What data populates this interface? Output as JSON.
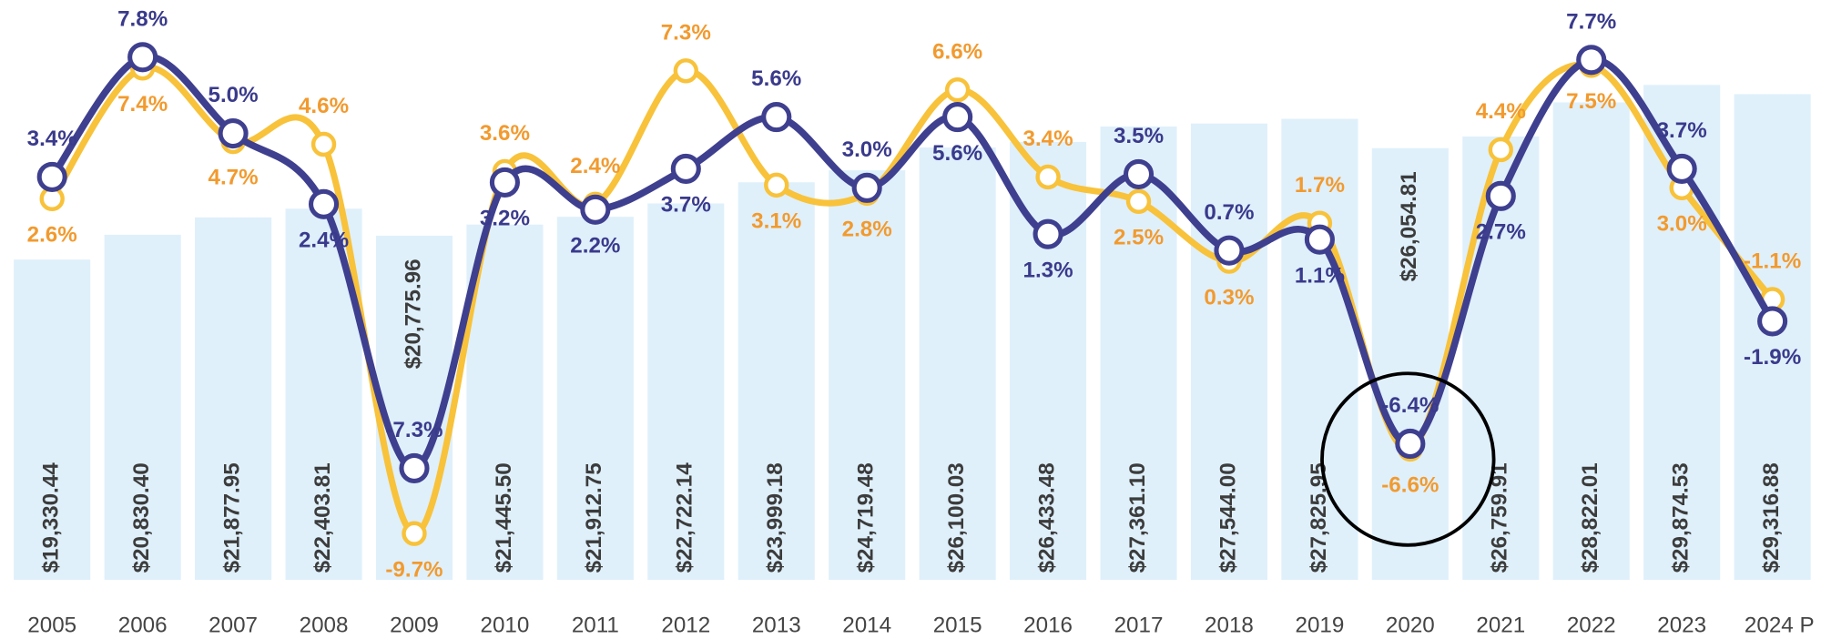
{
  "chart_data": {
    "type": "bar",
    "categories": [
      "2005",
      "2006",
      "2007",
      "2008",
      "2009",
      "2010",
      "2011",
      "2012",
      "2013",
      "2014",
      "2015",
      "2016",
      "2017",
      "2018",
      "2019",
      "2020",
      "2021",
      "2022",
      "2023",
      "2024 P"
    ],
    "values": [
      19330.44,
      20830.4,
      21877.95,
      22403.81,
      20775.96,
      21445.5,
      21912.75,
      22722.14,
      23999.18,
      24719.48,
      26100.03,
      26433.48,
      27361.1,
      27544.0,
      27825.95,
      26054.81,
      26759.91,
      28822.01,
      29874.53,
      29316.88
    ],
    "value_labels": [
      "$19,330.44",
      "$20,830.40",
      "$21,877.95",
      "$22,403.81",
      "$20,775.96",
      "$21,445.50",
      "$21,912.75",
      "$22,722.14",
      "$23,999.18",
      "$24,719.48",
      "$26,100.03",
      "$26,433.48",
      "$27,361.10",
      "$27,544.00",
      "$27,825.95",
      "$26,054.81",
      "$26,759.91",
      "$28,822.01",
      "$29,874.53",
      "$29,316.88"
    ],
    "color": "#dff0fb",
    "ylim": [
      0,
      35000
    ],
    "y2lim": [
      -11.4,
      9.9
    ],
    "series": [
      {
        "type": "line",
        "axis": "y2",
        "color": "#f8c23a",
        "label_color": "#f29a2e",
        "values": [
          2.6,
          7.4,
          4.7,
          4.6,
          -9.7,
          3.6,
          2.4,
          7.3,
          3.1,
          2.8,
          6.6,
          3.4,
          2.5,
          0.3,
          1.7,
          -6.6,
          4.4,
          7.5,
          3.0,
          -1.1
        ],
        "value_labels": [
          "2.6%",
          "7.4%",
          "4.7%",
          "4.6%",
          "-9.7%",
          "3.6%",
          "2.4%",
          "7.3%",
          "3.1%",
          "2.8%",
          "6.6%",
          "3.4%",
          "2.5%",
          "0.3%",
          "1.7%",
          "-6.6%",
          "4.4%",
          "7.5%",
          "3.0%",
          "-1.1%"
        ]
      },
      {
        "type": "line",
        "axis": "y2",
        "color": "#3f3f8f",
        "label_color": "#3a3a8c",
        "values": [
          3.4,
          7.8,
          5.0,
          2.4,
          -7.3,
          3.2,
          2.2,
          3.7,
          5.6,
          3.0,
          5.6,
          1.3,
          3.5,
          0.7,
          1.1,
          -6.4,
          2.7,
          7.7,
          3.7,
          -1.9
        ],
        "value_labels": [
          "3.4%",
          "7.8%",
          "5.0%",
          "2.4%",
          "-7.3%",
          "3.2%",
          "2.2%",
          "3.7%",
          "5.6%",
          "3.0%",
          "5.6%",
          "1.3%",
          "3.5%",
          "0.7%",
          "1.1%",
          "-6.4%",
          "2.7%",
          "7.7%",
          "3.7%",
          "-1.9%"
        ]
      }
    ]
  }
}
